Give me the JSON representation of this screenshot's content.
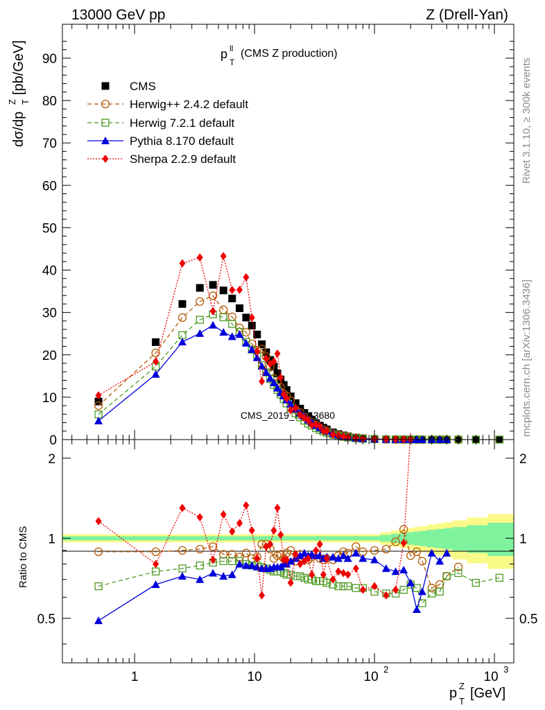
{
  "header": {
    "left": "13000 GeV pp",
    "right": "Z (Drell-Yan)"
  },
  "side_labels": {
    "top": "Rivet 3.1.10, ≥ 300k events",
    "bottom": "mcplots.cern.ch [arXiv:1306.3436]"
  },
  "plot_title": {
    "main": "p",
    "sup": "ll",
    "sub": "T",
    "rest": "(CMS Z production)"
  },
  "watermark": "CMS_2019_I1753680",
  "axes": {
    "y_top": {
      "text": "dσ/dp",
      "sup": "Z",
      "sub": "T",
      "tail": "[pb/GeV]"
    },
    "y_bottom": "Ratio to CMS",
    "x": {
      "main": "p",
      "sup": "Z",
      "sub": "T",
      "tail": "[GeV]"
    }
  },
  "tick_labels": {
    "top_y": [
      "0",
      "10",
      "20",
      "30",
      "40",
      "50",
      "60",
      "70",
      "80",
      "90"
    ],
    "bottom_y": [
      "0.5",
      "1",
      "2"
    ],
    "x": [
      {
        "base": "1",
        "exp": ""
      },
      {
        "base": "10",
        "exp": ""
      },
      {
        "base": "10",
        "exp": "2"
      },
      {
        "base": "10",
        "exp": "3"
      }
    ]
  },
  "legend": [
    {
      "label": "CMS"
    },
    {
      "label": "Herwig++ 2.4.2 default"
    },
    {
      "label": "Herwig 7.2.1 default"
    },
    {
      "label": "Pythia 8.170 default"
    },
    {
      "label": "Sherpa 2.2.9 default"
    }
  ],
  "colors": {
    "cms": "#000000",
    "herwigpp": "#b35900",
    "herwig7": "#4c9a21",
    "pythia": "#0000dd",
    "sherpa": "#ee0000",
    "band_inner": "#7ff29d",
    "band_outer": "#fafa88"
  },
  "chart_data": {
    "type": "scatter",
    "x_scale": "log",
    "top": {
      "ylim": [
        0,
        98
      ],
      "ylabel": "dσ/dp_T^Z [pb/GeV]"
    },
    "ratio": {
      "ylim": [
        0.34,
        2.35
      ],
      "ylabel": "Ratio to CMS",
      "scale": "log"
    },
    "xlim": [
      0.25,
      1450
    ],
    "x": [
      0.5,
      1.5,
      2.5,
      3.5,
      4.5,
      5.5,
      6.5,
      7.5,
      8.5,
      9.5,
      10.5,
      11.5,
      12.5,
      13.5,
      14.5,
      15.5,
      16.5,
      17.5,
      18.5,
      20,
      22,
      24,
      26,
      28,
      30,
      32.5,
      35,
      37.5,
      40,
      45,
      50,
      55,
      60,
      70,
      80,
      100,
      125,
      150,
      175,
      200,
      225,
      250,
      300,
      350,
      400,
      500,
      700,
      1100
    ],
    "series": [
      {
        "name": "CMS",
        "values": [
          9.0,
          23.0,
          32.0,
          35.8,
          36.5,
          35.2,
          33.3,
          31.0,
          28.8,
          26.9,
          24.8,
          22.5,
          20.6,
          18.8,
          17.2,
          15.6,
          14.2,
          12.9,
          11.7,
          10.2,
          8.6,
          7.3,
          6.3,
          5.4,
          4.7,
          3.9,
          3.3,
          2.8,
          2.4,
          1.7,
          1.3,
          1.0,
          0.76,
          0.47,
          0.3,
          0.15,
          0.075,
          0.04,
          0.024,
          0.015,
          0.01,
          0.0068,
          0.0037,
          0.0021,
          0.0013,
          0.0006,
          0.00018,
          4e-05
        ]
      },
      {
        "name": "Herwig++ 2.4.2 default",
        "ratio": [
          0.89,
          0.89,
          0.9,
          0.91,
          0.93,
          0.87,
          0.87,
          0.85,
          0.88,
          0.84,
          0.85,
          0.95,
          0.95,
          0.91,
          0.84,
          0.86,
          0.87,
          0.84,
          0.88,
          0.9,
          0.82,
          0.87,
          0.85,
          0.83,
          0.85,
          0.88,
          0.84,
          0.83,
          0.84,
          0.83,
          0.86,
          0.89,
          0.88,
          0.93,
          0.89,
          0.9,
          0.91,
          0.97,
          1.08,
          0.86,
          0.89,
          0.82,
          0.65,
          0.67,
          0.72,
          0.78,
          null,
          null
        ]
      },
      {
        "name": "Herwig 7.2.1 default",
        "ratio": [
          0.66,
          0.75,
          0.77,
          0.79,
          0.81,
          0.82,
          0.82,
          0.82,
          0.8,
          0.79,
          0.79,
          0.78,
          0.77,
          0.76,
          0.75,
          0.75,
          0.75,
          0.74,
          0.73,
          0.73,
          0.72,
          0.72,
          0.71,
          0.7,
          0.7,
          0.69,
          0.69,
          0.69,
          0.68,
          0.67,
          0.66,
          0.66,
          0.66,
          0.65,
          0.65,
          0.63,
          0.62,
          0.62,
          0.64,
          0.67,
          0.65,
          0.57,
          0.62,
          0.63,
          0.72,
          0.74,
          0.68,
          0.71
        ]
      },
      {
        "name": "Pythia 8.170 default",
        "ratio": [
          0.49,
          0.67,
          0.72,
          0.7,
          0.74,
          0.72,
          0.73,
          0.8,
          0.79,
          0.79,
          0.78,
          0.77,
          0.77,
          0.77,
          0.78,
          0.78,
          0.78,
          0.8,
          0.8,
          0.82,
          0.84,
          0.86,
          0.88,
          0.86,
          0.87,
          0.86,
          0.86,
          0.84,
          0.85,
          0.85,
          0.84,
          0.86,
          0.84,
          0.88,
          0.84,
          0.83,
          0.77,
          0.75,
          0.76,
          0.68,
          0.54,
          0.63,
          0.88,
          0.82,
          0.88,
          null,
          null,
          null
        ]
      },
      {
        "name": "Sherpa 2.2.9 default",
        "ratio": [
          1.16,
          0.8,
          1.3,
          1.2,
          0.83,
          1.23,
          1.06,
          1.14,
          1.33,
          1.07,
          0.84,
          0.61,
          0.93,
          0.95,
          1.07,
          1.3,
          1.03,
          0.83,
          0.83,
          0.68,
          0.87,
          0.8,
          0.82,
          0.84,
          0.73,
          0.9,
          0.95,
          0.73,
          0.84,
          0.7,
          0.75,
          0.74,
          0.73,
          0.77,
          0.64,
          0.66,
          0.61,
          0.64,
          0.96,
          2.5,
          null,
          null,
          null,
          null,
          null,
          null,
          null,
          null
        ]
      }
    ],
    "reference_line": 1
  }
}
